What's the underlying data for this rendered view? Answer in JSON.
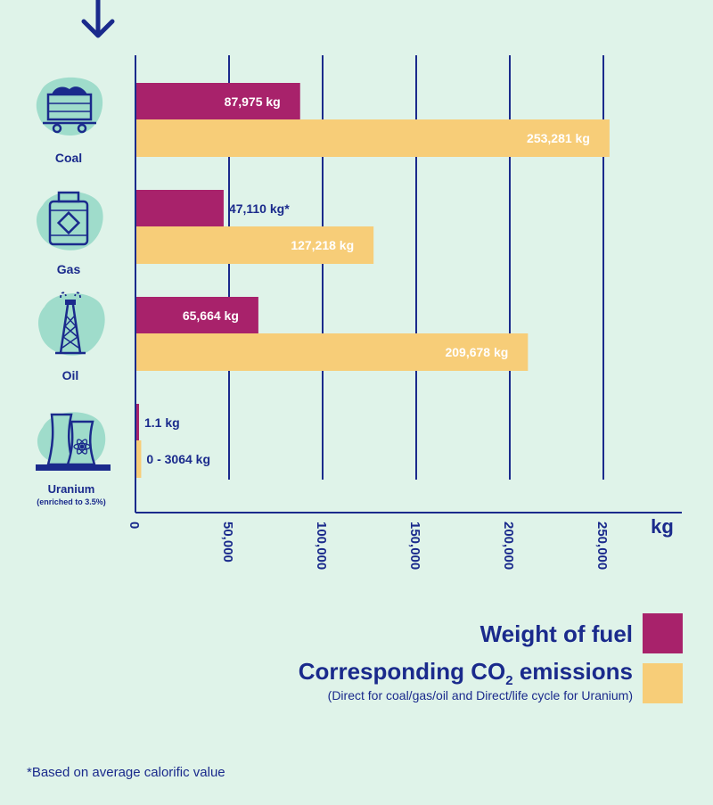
{
  "chart_data": {
    "type": "bar",
    "orientation": "horizontal",
    "categories": [
      "Coal",
      "Gas",
      "Oil",
      "Uranium"
    ],
    "category_notes": [
      "",
      "",
      "",
      "(enriched to 3.5%)"
    ],
    "series": [
      {
        "name": "Weight of fuel",
        "color": "#a8226b",
        "values": [
          87975,
          47110,
          65664,
          1.1
        ],
        "labels": [
          "87,975 kg",
          "47,110 kg*",
          "65,664 kg",
          "1.1 kg"
        ]
      },
      {
        "name": "Corresponding CO2 emissions",
        "color": "#f7cd78",
        "values": [
          253281,
          127218,
          209678,
          3064
        ],
        "labels": [
          "253,281 kg",
          "127,218 kg",
          "209,678 kg",
          "0 - 3064 kg"
        ]
      }
    ],
    "xlim": [
      0,
      290000
    ],
    "x_ticks": [
      0,
      50000,
      100000,
      150000,
      200000,
      250000
    ],
    "x_tick_labels": [
      "0",
      "50,000",
      "100,000",
      "150,000",
      "200,000",
      "250,000"
    ],
    "xlabel": "kg",
    "grid": true
  },
  "legend": {
    "fuel_label": "Weight of fuel",
    "co2_label_main": "Corresponding CO",
    "co2_label_sub": "2",
    "co2_label_end": " emissions",
    "co2_note": "(Direct for coal/gas/oil and Direct/life cycle for Uranium)",
    "fuel_color": "#a8226b",
    "co2_color": "#f7cd78"
  },
  "footnote": "*Based on average calorific value",
  "icons": [
    "arrow-down-icon",
    "coal-cart-icon",
    "gas-cylinder-icon",
    "oil-derrick-icon",
    "nuclear-plant-icon"
  ]
}
